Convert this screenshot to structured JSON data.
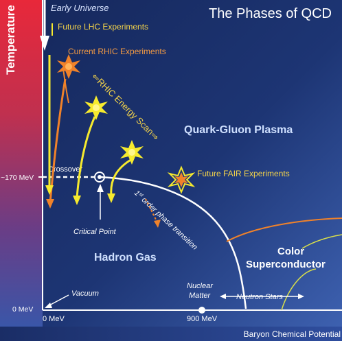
{
  "title": "The Phases of QCD",
  "axes": {
    "y_label": "Temperature",
    "x_label": "Baryon Chemical Potential",
    "y_tick_170": "~170 MeV",
    "y_tick_0": "0 MeV",
    "x_tick_0": "0 MeV",
    "x_tick_900": "900 MeV"
  },
  "labels": {
    "early_universe": "Early Universe",
    "future_lhc": "Future LHC Experiments",
    "current_rhic": "Current RHIC Experiments",
    "energy_scan": "⇐RHIC Energy Scan⇒",
    "qgp": "Quark-Gluon Plasma",
    "future_fair": "Future FAIR Experiments",
    "crossover": "Crossover",
    "critical_point": "Critical Point",
    "first_order_sup": "st",
    "first_order_1": "1",
    "first_order_rest": " order phase transition",
    "hadron_gas": "Hadron Gas",
    "color": "Color",
    "superconductor": "Superconductor",
    "vacuum": "Vacuum",
    "nuclear": "Nuclear",
    "matter": "Matter",
    "neutron_stars": "Neutron Stars"
  },
  "colors": {
    "background_dark": "#1b2f66",
    "background_light": "#3a5aa8",
    "temperature_bar_top": "#e8283a",
    "temperature_bar_bottom": "#3a56a8",
    "rhic_orange": "#f0822a",
    "lhc_yellow": "#f6ea2e",
    "text_light": "#cfe0ff",
    "text_yellow": "#f3d34a",
    "text_orange": "#f39a43",
    "white": "#ffffff"
  },
  "icons": [
    "down-arrow-icon",
    "starburst-icon",
    "dashed-arrow-icon",
    "critical-point-icon"
  ]
}
